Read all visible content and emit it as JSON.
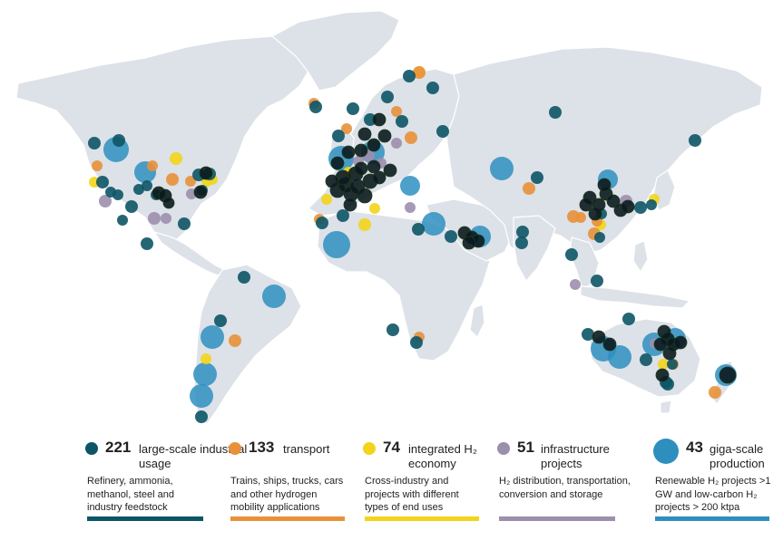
{
  "colors": {
    "industrial": "#0d5566",
    "transport": "#e8913a",
    "economy": "#f2d51a",
    "infrastructure": "#9c8fae",
    "giga": "#2e8fbf",
    "land": "#dde1e8"
  },
  "legend": [
    {
      "key": "industrial",
      "count": "221",
      "label": "large-scale industrial usage",
      "desc": "Refinery, ammonia, methanol, steel and industry feedstock",
      "color": "#0d5566",
      "bar": "#0d5566"
    },
    {
      "key": "transport",
      "count": "133",
      "label": "transport",
      "desc": "Trains, ships, trucks, cars and other hydrogen mobility applications",
      "color": "#e8913a",
      "bar": "#e8913a"
    },
    {
      "key": "economy",
      "count": "74",
      "label": "integrated H₂ economy",
      "desc": "Cross-industry and projects with different types of end uses",
      "color": "#f2d51a",
      "bar": "#f2d51a"
    },
    {
      "key": "infrastructure",
      "count": "51",
      "label": "infrastructure projects",
      "desc": "H₂ distribution, transportation, conversion and storage",
      "color": "#9c8fae",
      "bar": "#9c8fae"
    },
    {
      "key": "giga",
      "count": "43",
      "label": "giga-scale production",
      "desc": "Renewable H₂ projects >1 GW and low-carbon H₂ projects > 200 ktpa",
      "color": "#2e8fbf",
      "bar": "#2e8fbf"
    }
  ]
}
